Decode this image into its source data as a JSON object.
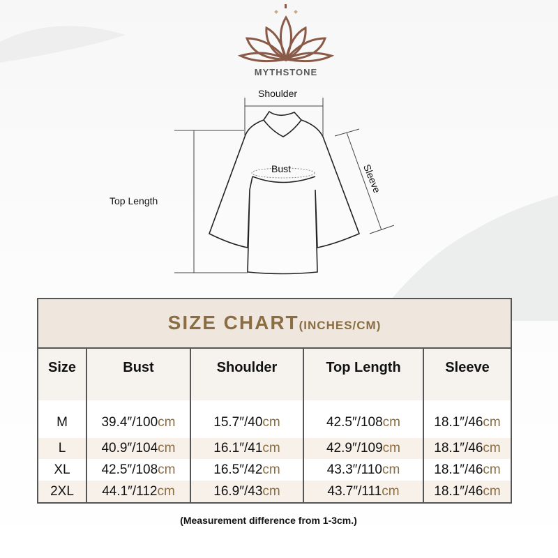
{
  "brand": {
    "name": "MYTHSTONE",
    "logo_icon": "lotus-icon",
    "logo_color": "#8a5a48"
  },
  "diagram": {
    "shoulder": "Shoulder",
    "bust": "Bust",
    "sleeve": "Sleeve",
    "top_length": "Top Length"
  },
  "table": {
    "title": "SIZE CHART",
    "title_units": "(INCHES/CM)",
    "accent_color": "#8a6d42",
    "headers": [
      "Size",
      "Bust",
      "Shoulder",
      "Top Length",
      "Sleeve"
    ],
    "rows": [
      {
        "size": "M",
        "bust": "39.4″/100",
        "shoulder": "15.7″/40",
        "length": "42.5″/108",
        "sleeve": "18.1″/46"
      },
      {
        "size": "L",
        "bust": "40.9″/104",
        "shoulder": "16.1″/41",
        "length": "42.9″/109",
        "sleeve": "18.1″/46"
      },
      {
        "size": "XL",
        "bust": "42.5″/108",
        "shoulder": "16.5″/42",
        "length": "43.3″/110",
        "sleeve": "18.1″/46"
      },
      {
        "size": "2XL",
        "bust": "44.1″/112",
        "shoulder": "16.9″/43",
        "length": "43.7″/111",
        "sleeve": "18.1″/46"
      }
    ],
    "unit": "cm"
  },
  "note": "(Measurement difference from 1-3cm.)"
}
